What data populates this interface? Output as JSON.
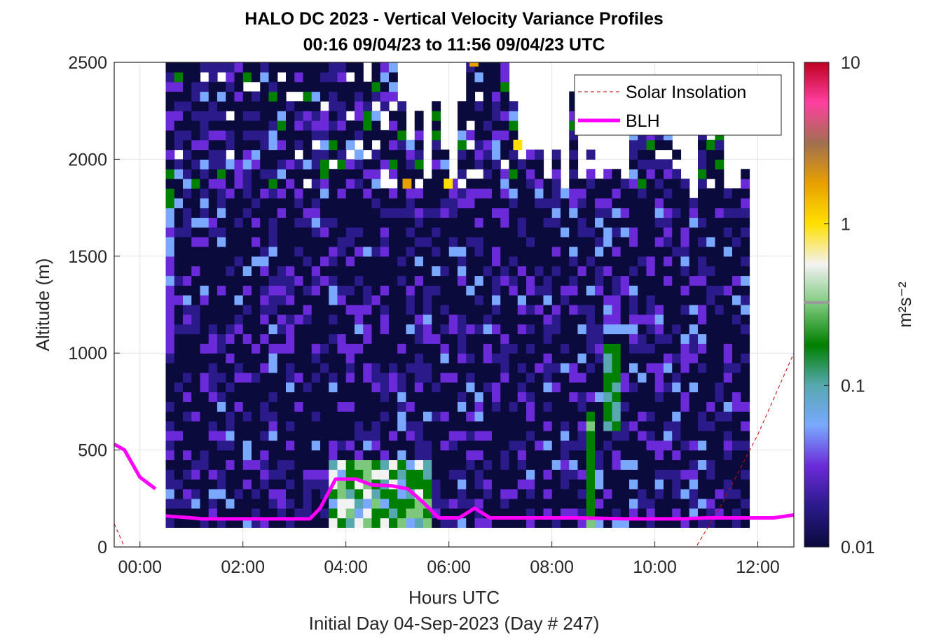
{
  "chart_data": {
    "type": "heatmap",
    "title": "HALO DC 2023 - Vertical Velocity Variance Profiles",
    "subtitle": "00:16 09/04/23 to 11:56 09/04/23  UTC",
    "xlabel": "Hours UTC",
    "xlabel2": "Initial Day 04-Sep-2023 (Day # 247)",
    "ylabel": "Altitude (m)",
    "colorbar_label": "m²s⁻²",
    "x_range_hours": [
      -0.5,
      12.7
    ],
    "y_range_m": [
      0,
      2500
    ],
    "x_ticks": [
      {
        "v": 0,
        "label": "00:00"
      },
      {
        "v": 2,
        "label": "02:00"
      },
      {
        "v": 4,
        "label": "04:00"
      },
      {
        "v": 6,
        "label": "06:00"
      },
      {
        "v": 8,
        "label": "08:00"
      },
      {
        "v": 10,
        "label": "10:00"
      },
      {
        "v": 12,
        "label": "12:00"
      }
    ],
    "y_ticks": [
      {
        "v": 0,
        "label": "0"
      },
      {
        "v": 500,
        "label": "500"
      },
      {
        "v": 1000,
        "label": "1000"
      },
      {
        "v": 1500,
        "label": "1500"
      },
      {
        "v": 2000,
        "label": "2000"
      },
      {
        "v": 2500,
        "label": "2500"
      }
    ],
    "colorbar": {
      "scale": "log",
      "range": [
        0.01,
        10
      ],
      "ticks": [
        {
          "v": 0.01,
          "label": "0.01"
        },
        {
          "v": 0.1,
          "label": "0.1"
        },
        {
          "v": 1,
          "label": "1"
        },
        {
          "v": 10,
          "label": "10"
        }
      ],
      "colors": [
        "#0a0a3c",
        "#2a1a8a",
        "#6a2ad8",
        "#7aa8ff",
        "#58a8b0",
        "#008000",
        "#7cc87c",
        "#f2f2f2",
        "#ffe000",
        "#e8a000",
        "#a07050",
        "#ff40a0",
        "#c00020"
      ]
    },
    "grid": true,
    "legend_position": "top-right",
    "legend": [
      {
        "name": "Solar Insolation",
        "color": "#cc0000",
        "style": "dashed"
      },
      {
        "name": "BLH",
        "color": "#ff00ff",
        "style": "solid"
      }
    ],
    "heatmap": {
      "x_start_hours": 0.5,
      "x_end_hours": 11.9,
      "column_width_hours": 0.1667,
      "y_start_m": 100,
      "bin_height_m": 50,
      "max_bins": 48
    },
    "blh_series": {
      "name": "BLH",
      "x": [
        -0.5,
        -0.3,
        0.0,
        0.3
      ],
      "y": [
        530,
        500,
        360,
        300
      ],
      "x2": [
        0.5,
        1.0,
        1.2,
        2.0,
        3.0,
        3.3,
        3.5,
        3.8,
        4.2,
        4.5,
        4.9,
        5.2,
        5.5,
        5.8,
        6.2,
        6.5,
        6.8,
        7.5,
        8.5,
        9.5,
        10.0,
        10.5,
        11.0,
        11.5,
        12.0,
        12.3,
        12.7
      ],
      "y2": [
        160,
        150,
        145,
        145,
        145,
        145,
        200,
        350,
        350,
        320,
        315,
        300,
        230,
        150,
        150,
        200,
        150,
        150,
        150,
        145,
        145,
        145,
        150,
        150,
        150,
        150,
        165
      ]
    },
    "solar_series": {
      "name": "Solar Insolation",
      "x": [
        -0.5,
        -0.3,
        10.8,
        11.3,
        12.0,
        12.7
      ],
      "y": [
        120,
        0,
        0,
        220,
        580,
        1000
      ]
    }
  }
}
